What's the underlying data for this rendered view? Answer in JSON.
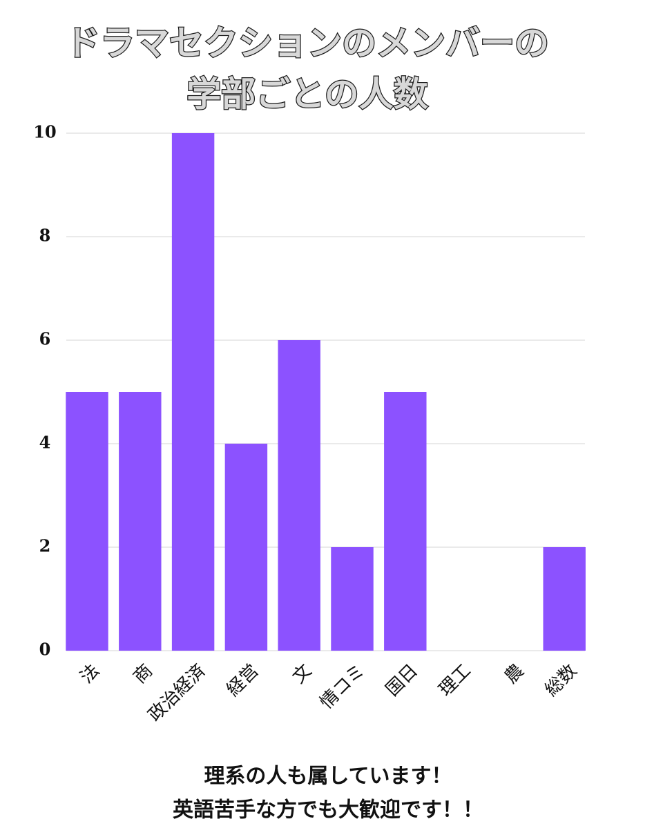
{
  "chart_data": {
    "type": "bar",
    "title": [
      "ドラマセクションのメンバーの",
      "学部ごとの人数"
    ],
    "categories": [
      "法",
      "商",
      "政治経済",
      "経営",
      "文",
      "情コミ",
      "国日",
      "理工",
      "農",
      "総数"
    ],
    "values": [
      5,
      5,
      10,
      4,
      6,
      2,
      5,
      0,
      0,
      2
    ],
    "color": "#8c52ff",
    "ylim": [
      0,
      10
    ],
    "yticks": [
      0,
      2,
      4,
      6,
      8,
      10
    ],
    "grid": true,
    "annotations": [
      "理系の人も属しています！",
      "英語苦手な方でも大歓迎です！！"
    ]
  }
}
